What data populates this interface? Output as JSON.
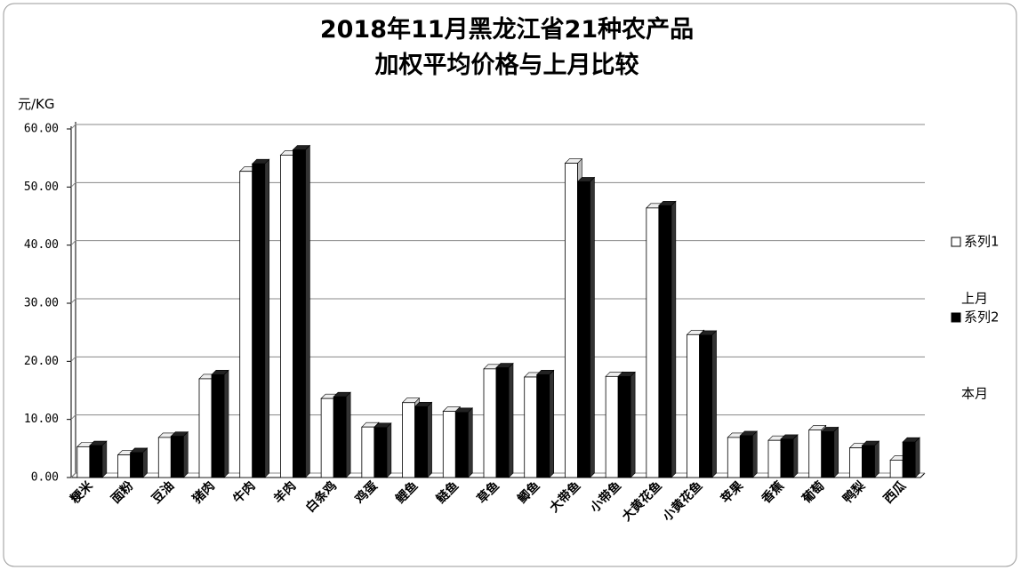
{
  "chart_data": {
    "type": "bar3d",
    "title_lines": [
      "2018年11月黑龙江省21种农产品",
      "加权平均价格与上月比较"
    ],
    "y_label": "元/KG",
    "categories": [
      "粳米",
      "面粉",
      "豆油",
      "猪肉",
      "牛肉",
      "羊肉",
      "白条鸡",
      "鸡蛋",
      "鲤鱼",
      "鲢鱼",
      "草鱼",
      "鲫鱼",
      "大带鱼",
      "小带鱼",
      "大黄花鱼",
      "小黄花鱼",
      "苹果",
      "香蕉",
      "葡萄",
      "鸭梨",
      "西瓜"
    ],
    "series": [
      {
        "name": "系列1",
        "legend_note": "上月",
        "color": "#ffffff",
        "values": [
          5.3,
          3.9,
          6.9,
          17.0,
          52.7,
          55.5,
          13.6,
          8.7,
          12.9,
          11.4,
          18.7,
          17.3,
          54.1,
          17.4,
          46.4,
          24.6,
          6.9,
          6.4,
          8.2,
          5.1,
          3.0
        ]
      },
      {
        "name": "系列2",
        "legend_note": "本月",
        "color": "#000000",
        "values": [
          5.5,
          4.3,
          7.1,
          17.7,
          54.0,
          56.4,
          13.9,
          8.6,
          12.2,
          11.2,
          18.9,
          17.7,
          50.9,
          17.4,
          46.8,
          24.5,
          7.2,
          6.6,
          7.9,
          5.5,
          6.1
        ]
      }
    ],
    "ylim": [
      0,
      60
    ],
    "yticks": [
      {
        "value": 0,
        "label": "0.00"
      },
      {
        "value": 10,
        "label": "10.00"
      },
      {
        "value": 20,
        "label": "20.00"
      },
      {
        "value": 30,
        "label": "30.00"
      },
      {
        "value": 40,
        "label": "40.00"
      },
      {
        "value": 50,
        "label": "50.00"
      },
      {
        "value": 60,
        "label": "60.00"
      }
    ],
    "grid": true
  }
}
